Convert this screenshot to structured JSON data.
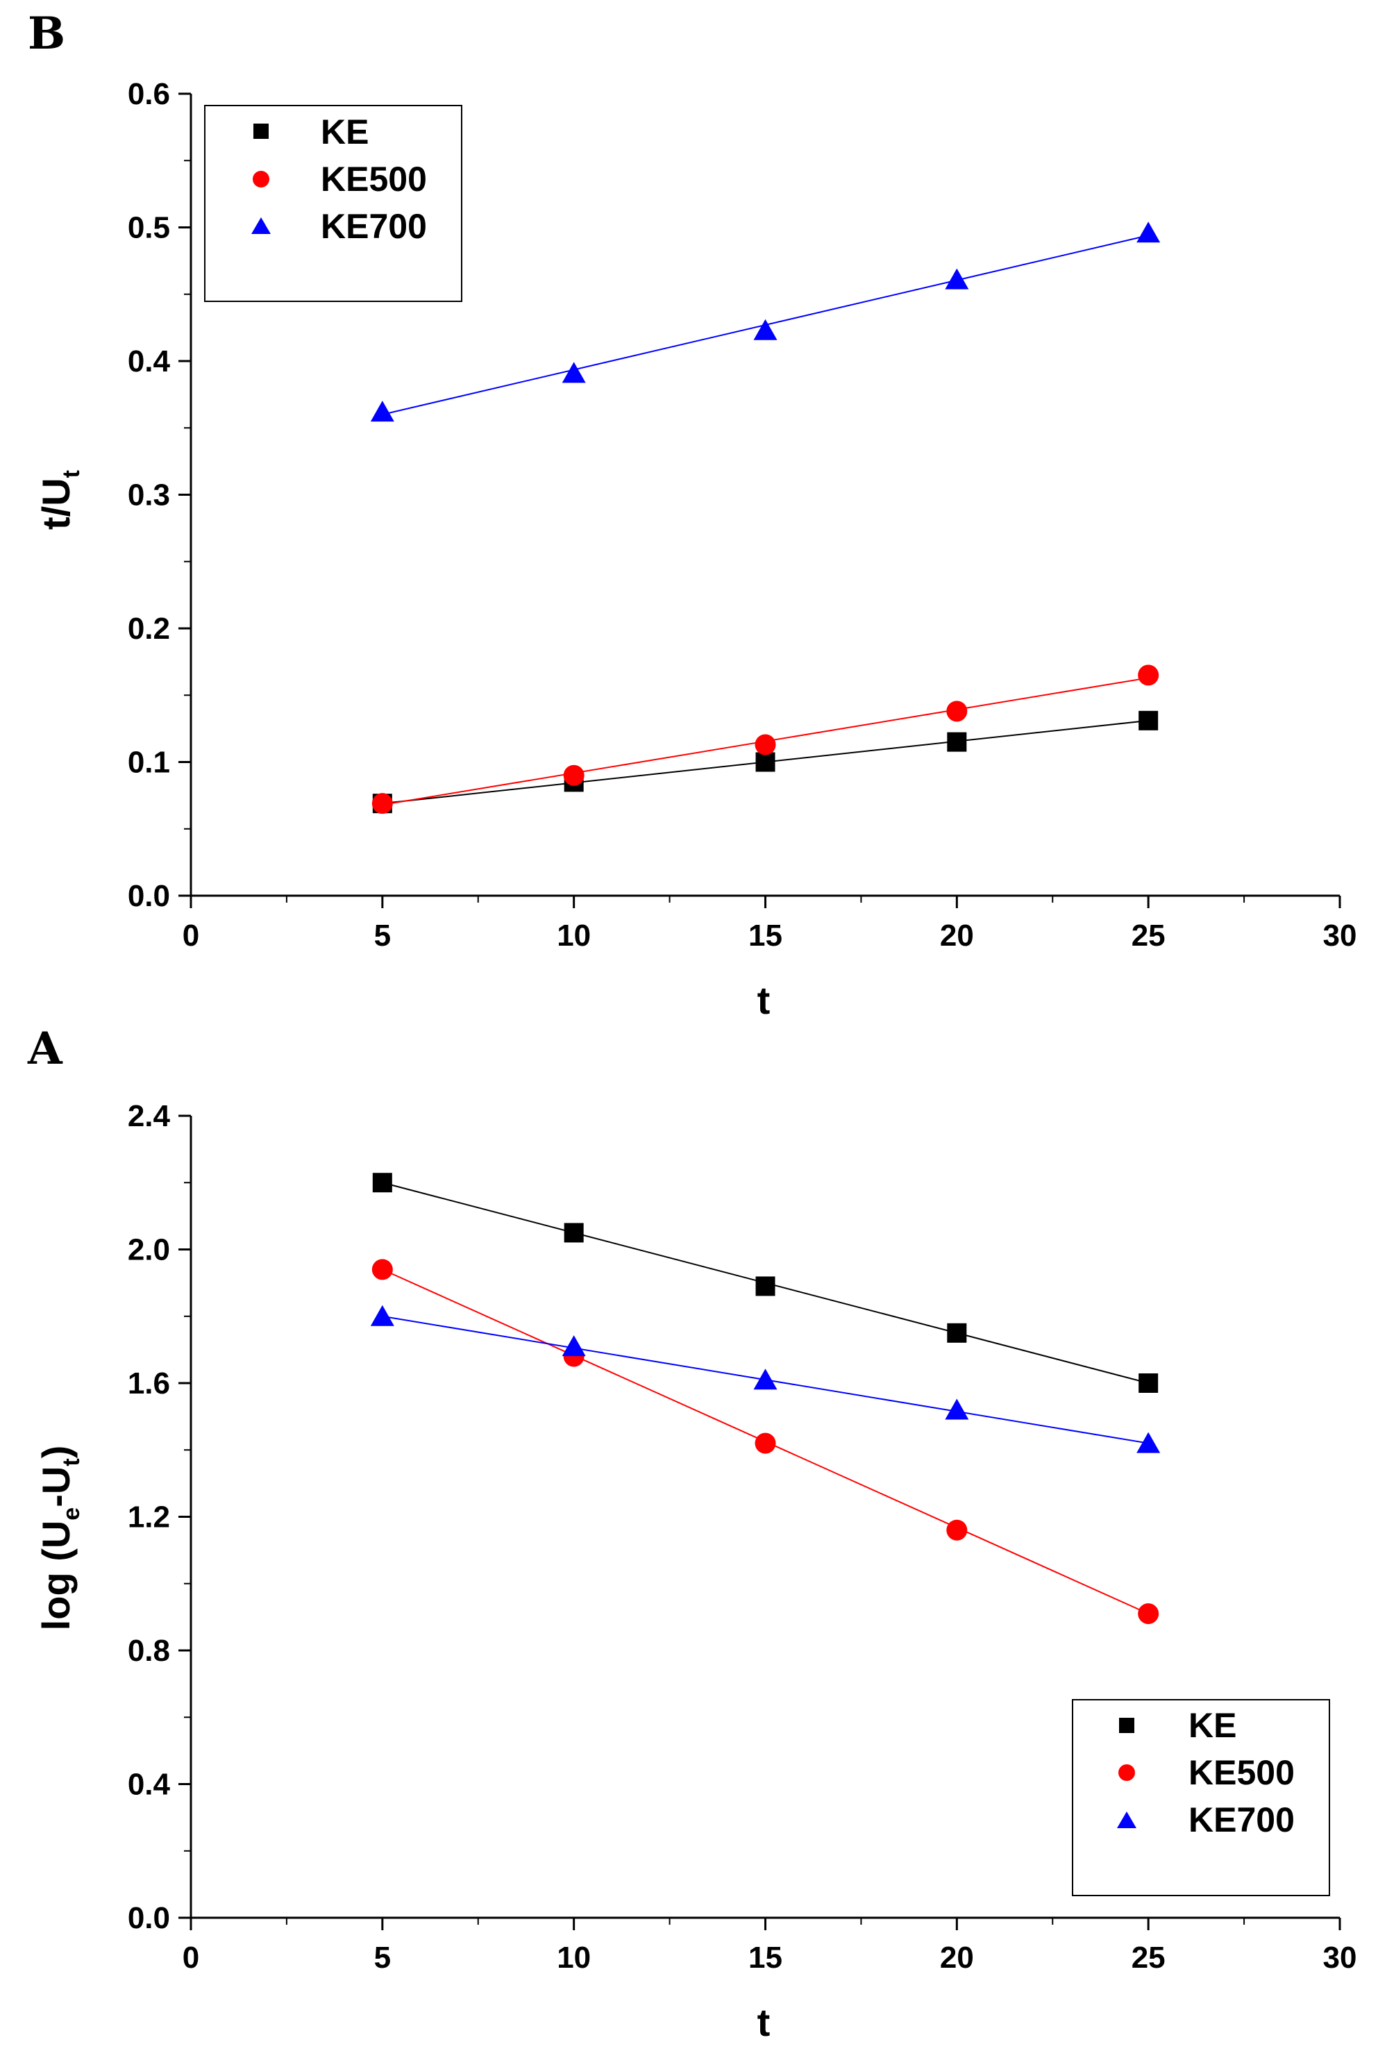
{
  "chart_data": [
    {
      "panel": "B",
      "type": "line",
      "xlabel": "t",
      "ylabel": {
        "main": "t/U",
        "sub": "t"
      },
      "xlim": [
        0,
        30
      ],
      "ylim": [
        0.0,
        0.6
      ],
      "xticks": [
        "0",
        "5",
        "10",
        "15",
        "20",
        "25",
        "30"
      ],
      "yticks": [
        "0.0",
        "0.1",
        "0.2",
        "0.3",
        "0.4",
        "0.5",
        "0.6"
      ],
      "legend_position": "top-left",
      "x": [
        5,
        10,
        15,
        20,
        25
      ],
      "series": [
        {
          "name": "KE",
          "marker": "square",
          "color": "#000000",
          "values": [
            0.069,
            0.085,
            0.1,
            0.115,
            0.131
          ],
          "fit": [
            0.069,
            0.131
          ]
        },
        {
          "name": "KE500",
          "marker": "circle",
          "color": "#ff0000",
          "values": [
            0.069,
            0.09,
            0.113,
            0.138,
            0.165
          ],
          "fit": [
            0.068,
            0.163
          ]
        },
        {
          "name": "KE700",
          "marker": "triangle",
          "color": "#0000ff",
          "values": [
            0.362,
            0.391,
            0.423,
            0.461,
            0.496
          ],
          "fit": [
            0.36,
            0.494
          ]
        }
      ]
    },
    {
      "panel": "A",
      "type": "line",
      "xlabel": "t",
      "ylabel": {
        "main": "log (U",
        "sub1": "e",
        "mid": "-U",
        "sub2": "t",
        "end": ")"
      },
      "xlim": [
        0,
        30
      ],
      "ylim": [
        0.0,
        2.4
      ],
      "xticks": [
        "0",
        "5",
        "10",
        "15",
        "20",
        "25",
        "30"
      ],
      "yticks": [
        "0.0",
        "0.4",
        "0.8",
        "1.2",
        "1.6",
        "2.0",
        "2.4"
      ],
      "legend_position": "bottom-right",
      "x": [
        5,
        10,
        15,
        20,
        25
      ],
      "series": [
        {
          "name": "KE",
          "marker": "square",
          "color": "#000000",
          "values": [
            2.2,
            2.05,
            1.89,
            1.75,
            1.6
          ],
          "fit": [
            2.2,
            1.6
          ]
        },
        {
          "name": "KE500",
          "marker": "circle",
          "color": "#ff0000",
          "values": [
            1.94,
            1.68,
            1.42,
            1.16,
            0.91
          ],
          "fit": [
            1.94,
            0.91
          ]
        },
        {
          "name": "KE700",
          "marker": "triangle",
          "color": "#0000ff",
          "values": [
            1.8,
            1.71,
            1.61,
            1.52,
            1.42
          ],
          "fit": [
            1.8,
            1.42
          ]
        }
      ]
    }
  ]
}
